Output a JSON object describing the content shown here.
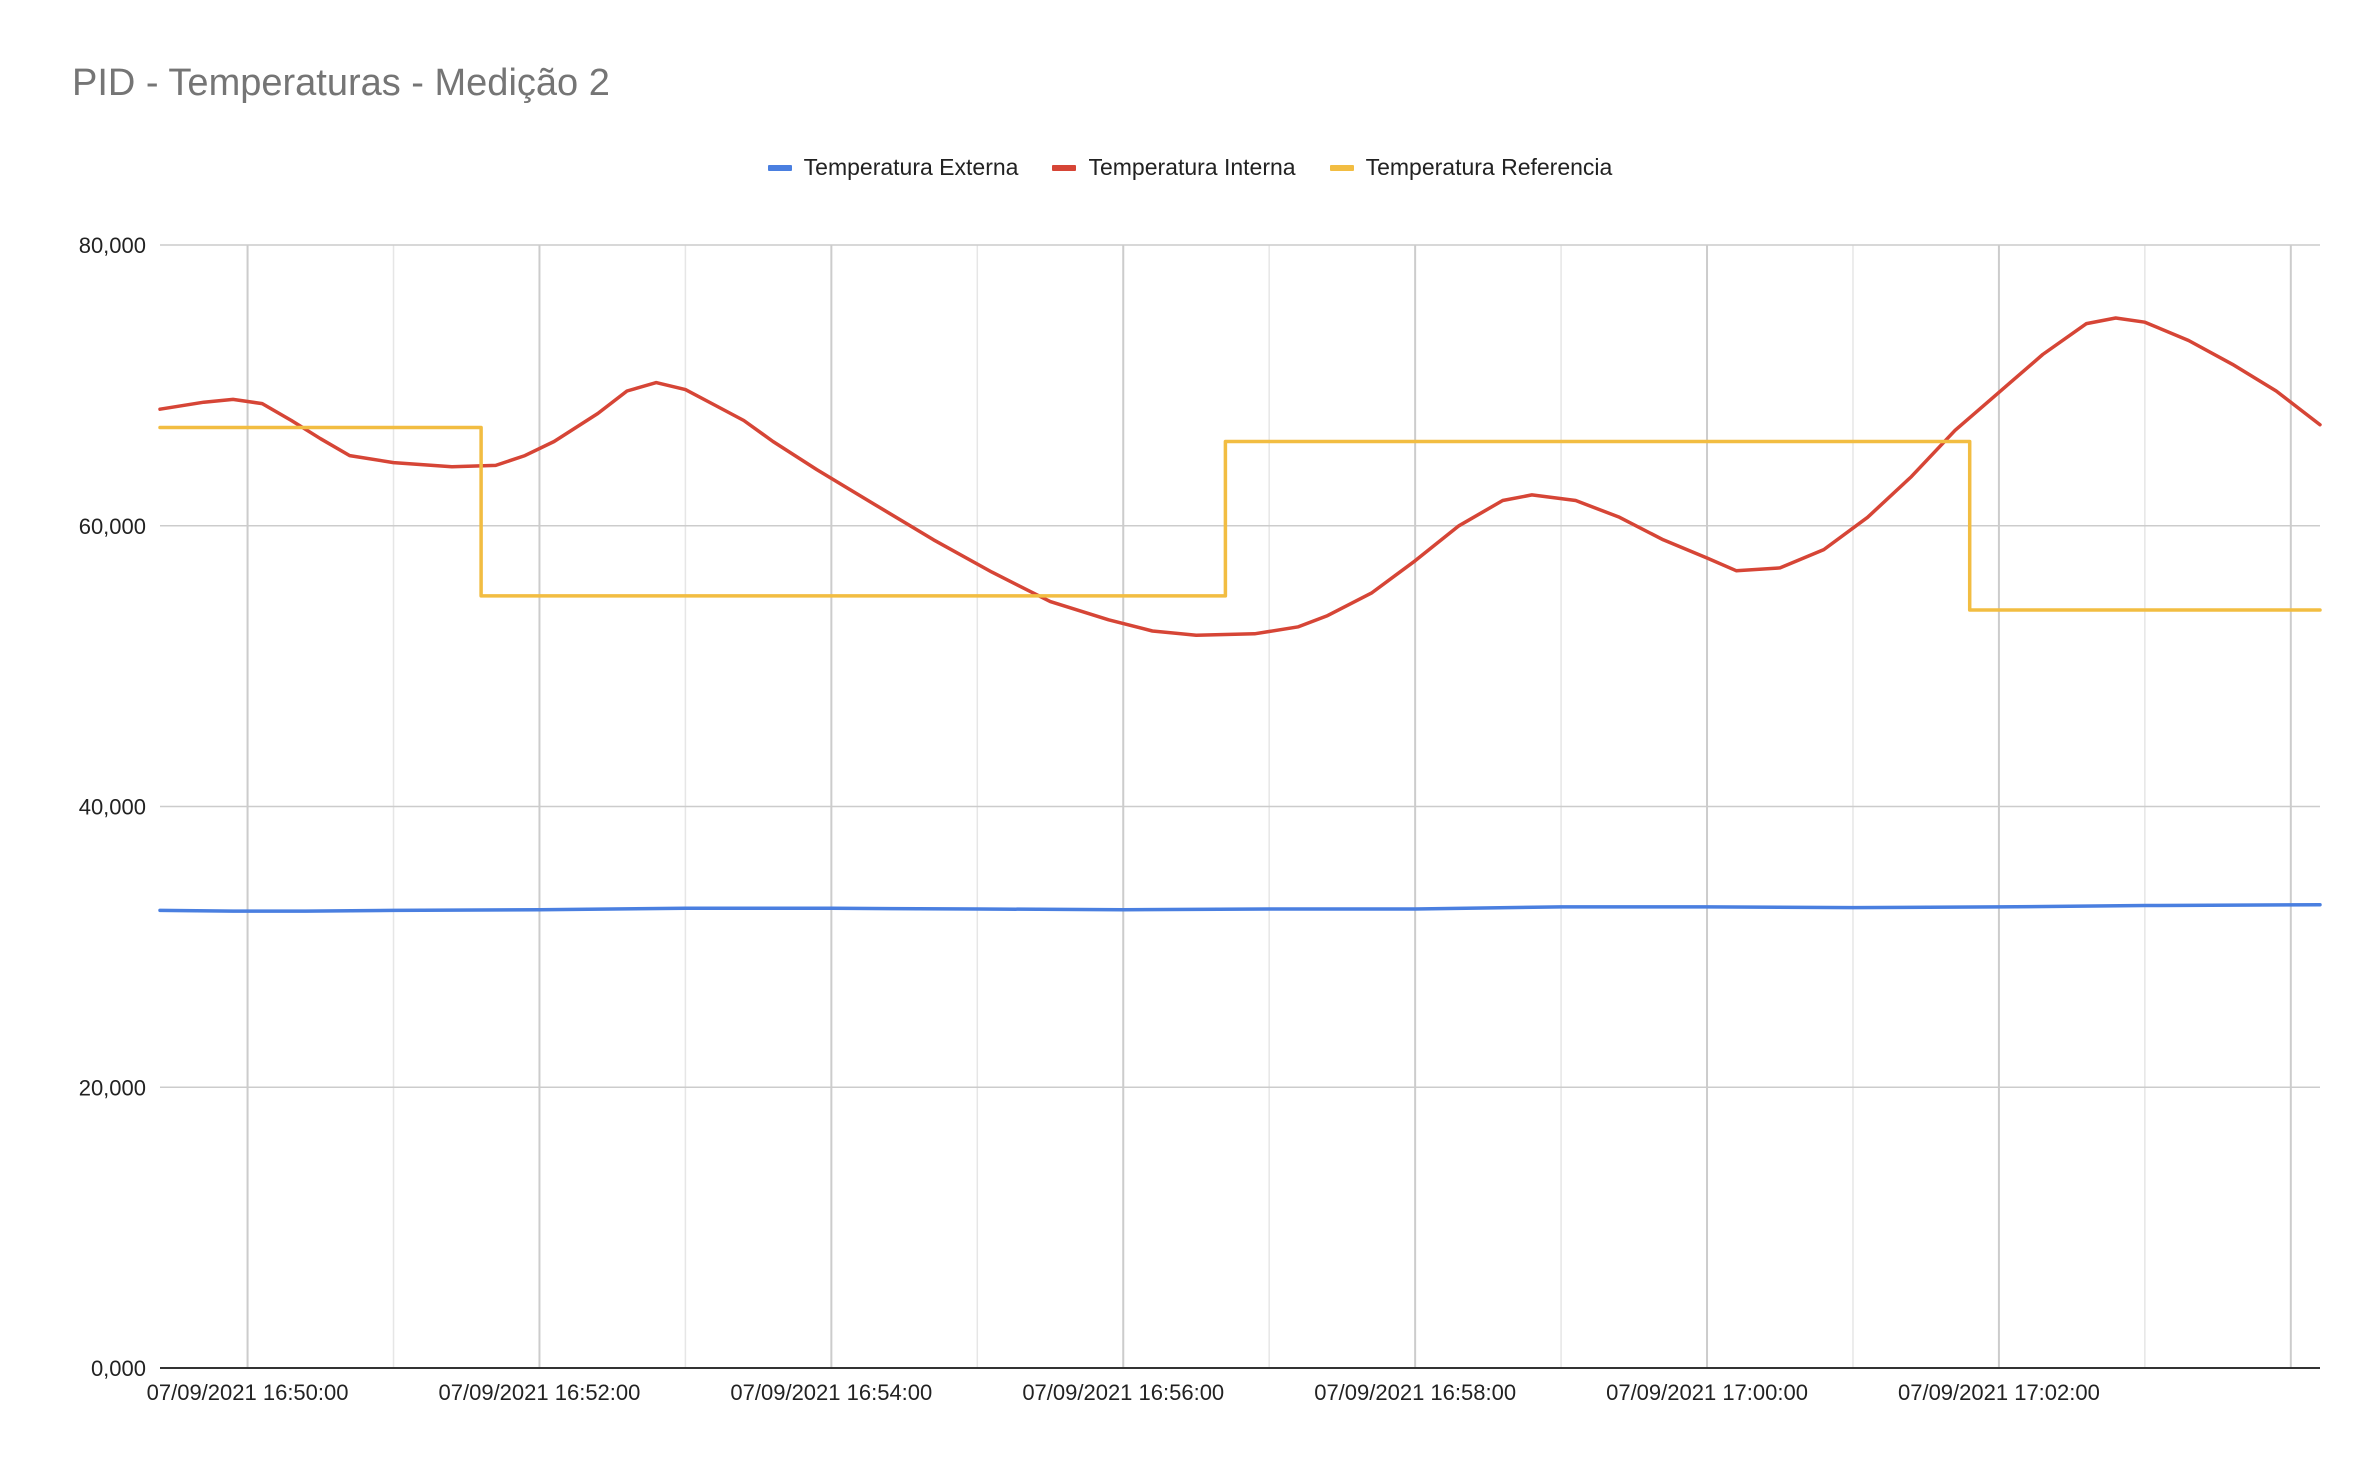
{
  "chart_data": {
    "type": "line",
    "title": "PID - Temperaturas - Medição 2",
    "xlabel": "",
    "ylabel": "",
    "ylim": [
      0,
      80000
    ],
    "y_ticks": [
      "0,000",
      "20,000",
      "40,000",
      "60,000",
      "80,000"
    ],
    "x_ticks": [
      "07/09/2021 16:50:00",
      "07/09/2021 16:52:00",
      "07/09/2021 16:54:00",
      "07/09/2021 16:56:00",
      "07/09/2021 16:58:00",
      "07/09/2021 17:00:00",
      "07/09/2021 17:02:00"
    ],
    "x_range": [
      "07/09/2021 16:49:24",
      "07/09/2021 17:04:12"
    ],
    "grid": true,
    "legend_position": "top",
    "series": [
      {
        "name": "Temperatura Externa",
        "color": "#4a7fe0",
        "points": [
          [
            "07/09/2021 16:49:24",
            32600
          ],
          [
            "07/09/2021 16:49:54",
            32550
          ],
          [
            "07/09/2021 16:50:24",
            32550
          ],
          [
            "07/09/2021 16:51:00",
            32600
          ],
          [
            "07/09/2021 16:52:00",
            32650
          ],
          [
            "07/09/2021 16:53:00",
            32750
          ],
          [
            "07/09/2021 16:54:00",
            32750
          ],
          [
            "07/09/2021 16:55:00",
            32700
          ],
          [
            "07/09/2021 16:56:00",
            32650
          ],
          [
            "07/09/2021 16:57:00",
            32700
          ],
          [
            "07/09/2021 16:58:00",
            32700
          ],
          [
            "07/09/2021 16:59:00",
            32850
          ],
          [
            "07/09/2021 17:00:00",
            32850
          ],
          [
            "07/09/2021 17:01:00",
            32800
          ],
          [
            "07/09/2021 17:02:00",
            32850
          ],
          [
            "07/09/2021 17:03:00",
            32950
          ],
          [
            "07/09/2021 17:04:12",
            33000
          ]
        ]
      },
      {
        "name": "Temperatura Interna",
        "color": "#d64536",
        "points": [
          [
            "07/09/2021 16:49:24",
            68300
          ],
          [
            "07/09/2021 16:49:42",
            68800
          ],
          [
            "07/09/2021 16:49:54",
            69000
          ],
          [
            "07/09/2021 16:50:06",
            68700
          ],
          [
            "07/09/2021 16:50:18",
            67500
          ],
          [
            "07/09/2021 16:50:30",
            66200
          ],
          [
            "07/09/2021 16:50:42",
            65000
          ],
          [
            "07/09/2021 16:51:00",
            64500
          ],
          [
            "07/09/2021 16:51:24",
            64200
          ],
          [
            "07/09/2021 16:51:42",
            64300
          ],
          [
            "07/09/2021 16:51:54",
            65000
          ],
          [
            "07/09/2021 16:52:06",
            66000
          ],
          [
            "07/09/2021 16:52:24",
            68000
          ],
          [
            "07/09/2021 16:52:36",
            69600
          ],
          [
            "07/09/2021 16:52:48",
            70200
          ],
          [
            "07/09/2021 16:53:00",
            69700
          ],
          [
            "07/09/2021 16:53:12",
            68600
          ],
          [
            "07/09/2021 16:53:24",
            67500
          ],
          [
            "07/09/2021 16:53:36",
            66000
          ],
          [
            "07/09/2021 16:53:54",
            64000
          ],
          [
            "07/09/2021 16:54:18",
            61500
          ],
          [
            "07/09/2021 16:54:42",
            59000
          ],
          [
            "07/09/2021 16:55:06",
            56700
          ],
          [
            "07/09/2021 16:55:30",
            54600
          ],
          [
            "07/09/2021 16:55:54",
            53300
          ],
          [
            "07/09/2021 16:56:12",
            52500
          ],
          [
            "07/09/2021 16:56:30",
            52200
          ],
          [
            "07/09/2021 16:56:54",
            52300
          ],
          [
            "07/09/2021 16:57:12",
            52800
          ],
          [
            "07/09/2021 16:57:24",
            53600
          ],
          [
            "07/09/2021 16:57:42",
            55200
          ],
          [
            "07/09/2021 16:58:00",
            57500
          ],
          [
            "07/09/2021 16:58:18",
            60000
          ],
          [
            "07/09/2021 16:58:36",
            61800
          ],
          [
            "07/09/2021 16:58:48",
            62200
          ],
          [
            "07/09/2021 16:59:06",
            61800
          ],
          [
            "07/09/2021 16:59:24",
            60600
          ],
          [
            "07/09/2021 16:59:42",
            59000
          ],
          [
            "07/09/2021 17:00:00",
            57700
          ],
          [
            "07/09/2021 17:00:12",
            56800
          ],
          [
            "07/09/2021 17:00:30",
            57000
          ],
          [
            "07/09/2021 17:00:48",
            58300
          ],
          [
            "07/09/2021 17:01:06",
            60600
          ],
          [
            "07/09/2021 17:01:24",
            63500
          ],
          [
            "07/09/2021 17:01:42",
            66800
          ],
          [
            "07/09/2021 17:02:00",
            69500
          ],
          [
            "07/09/2021 17:02:18",
            72200
          ],
          [
            "07/09/2021 17:02:36",
            74400
          ],
          [
            "07/09/2021 17:02:48",
            74800
          ],
          [
            "07/09/2021 17:03:00",
            74500
          ],
          [
            "07/09/2021 17:03:18",
            73200
          ],
          [
            "07/09/2021 17:03:36",
            71500
          ],
          [
            "07/09/2021 17:03:54",
            69600
          ],
          [
            "07/09/2021 17:04:12",
            67200
          ]
        ]
      },
      {
        "name": "Temperatura Referencia",
        "color": "#f2bd42",
        "points": [
          [
            "07/09/2021 16:49:24",
            67000
          ],
          [
            "07/09/2021 16:51:36",
            67000
          ],
          [
            "07/09/2021 16:51:36",
            55000
          ],
          [
            "07/09/2021 16:56:42",
            55000
          ],
          [
            "07/09/2021 16:56:42",
            66000
          ],
          [
            "07/09/2021 17:01:48",
            66000
          ],
          [
            "07/09/2021 17:01:48",
            54000
          ],
          [
            "07/09/2021 17:04:12",
            54000
          ]
        ]
      }
    ]
  }
}
